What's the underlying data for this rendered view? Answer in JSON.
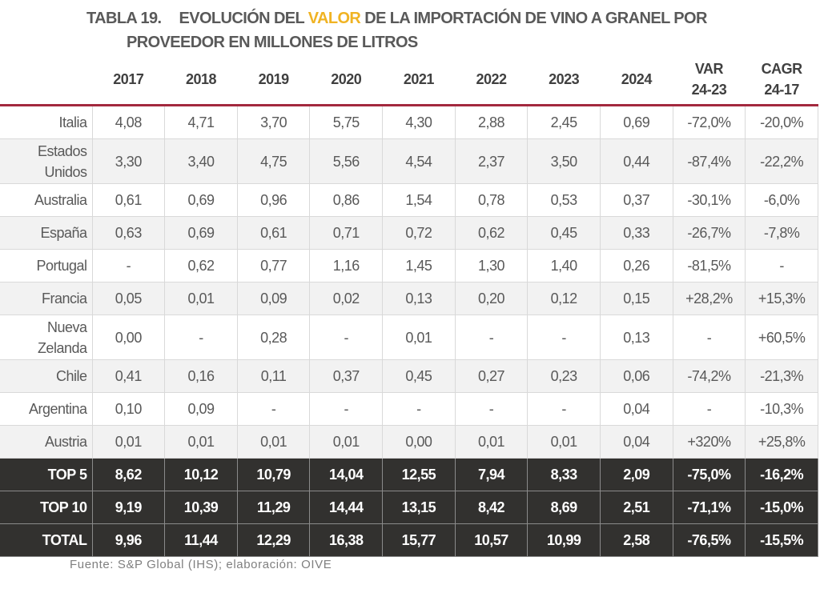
{
  "title": {
    "prefix": "TABLA 19.",
    "part1": "EVOLUCIÓN DEL ",
    "highlight": "VALOR",
    "part2": " DE LA IMPORTACIÓN DE VINO A GRANEL POR",
    "line2": "PROVEEDOR EN MILLONES DE LITROS"
  },
  "colors": {
    "accent": "#f0b323",
    "rule": "#a3293e",
    "dark_row": "#32312f"
  },
  "headers": [
    "2017",
    "2018",
    "2019",
    "2020",
    "2021",
    "2022",
    "2023",
    "2024",
    [
      "VAR",
      "24-23"
    ],
    [
      "CAGR",
      "24-17"
    ]
  ],
  "rows": [
    {
      "label": [
        "Italia"
      ],
      "values": [
        "4,08",
        "4,71",
        "3,70",
        "5,75",
        "4,30",
        "2,88",
        "2,45",
        "0,69",
        "-72,0%",
        "-20,0%"
      ]
    },
    {
      "label": [
        "Estados",
        "Unidos"
      ],
      "values": [
        "3,30",
        "3,40",
        "4,75",
        "5,56",
        "4,54",
        "2,37",
        "3,50",
        "0,44",
        "-87,4%",
        "-22,2%"
      ]
    },
    {
      "label": [
        "Australia"
      ],
      "values": [
        "0,61",
        "0,69",
        "0,96",
        "0,86",
        "1,54",
        "0,78",
        "0,53",
        "0,37",
        "-30,1%",
        "-6,0%"
      ]
    },
    {
      "label": [
        "España"
      ],
      "values": [
        "0,63",
        "0,69",
        "0,61",
        "0,71",
        "0,72",
        "0,62",
        "0,45",
        "0,33",
        "-26,7%",
        "-7,8%"
      ]
    },
    {
      "label": [
        "Portugal"
      ],
      "values": [
        "-",
        "0,62",
        "0,77",
        "1,16",
        "1,45",
        "1,30",
        "1,40",
        "0,26",
        "-81,5%",
        "-"
      ]
    },
    {
      "label": [
        "Francia"
      ],
      "values": [
        "0,05",
        "0,01",
        "0,09",
        "0,02",
        "0,13",
        "0,20",
        "0,12",
        "0,15",
        "+28,2%",
        "+15,3%"
      ]
    },
    {
      "label": [
        "Nueva",
        "Zelanda"
      ],
      "values": [
        "0,00",
        "-",
        "0,28",
        "-",
        "0,01",
        "-",
        "-",
        "0,13",
        "-",
        "+60,5%"
      ]
    },
    {
      "label": [
        "Chile"
      ],
      "values": [
        "0,41",
        "0,16",
        "0,11",
        "0,37",
        "0,45",
        "0,27",
        "0,23",
        "0,06",
        "-74,2%",
        "-21,3%"
      ]
    },
    {
      "label": [
        "Argentina"
      ],
      "values": [
        "0,10",
        "0,09",
        "-",
        "-",
        "-",
        "-",
        "-",
        "0,04",
        "-",
        "-10,3%"
      ]
    },
    {
      "label": [
        "Austria"
      ],
      "values": [
        "0,01",
        "0,01",
        "0,01",
        "0,01",
        "0,00",
        "0,01",
        "0,01",
        "0,04",
        "+320%",
        "+25,8%"
      ]
    }
  ],
  "totals": [
    {
      "label": [
        "TOP 5"
      ],
      "values": [
        "8,62",
        "10,12",
        "10,79",
        "14,04",
        "12,55",
        "7,94",
        "8,33",
        "2,09",
        "-75,0%",
        "-16,2%"
      ]
    },
    {
      "label": [
        "TOP 10"
      ],
      "values": [
        "9,19",
        "10,39",
        "11,29",
        "14,44",
        "13,15",
        "8,42",
        "8,69",
        "2,51",
        "-71,1%",
        "-15,0%"
      ]
    },
    {
      "label": [
        "TOTAL"
      ],
      "values": [
        "9,96",
        "11,44",
        "12,29",
        "16,38",
        "15,77",
        "10,57",
        "10,99",
        "2,58",
        "-76,5%",
        "-15,5%"
      ]
    }
  ],
  "footer": "Fuente: S&P Global (IHS); elaboración: OIVE"
}
